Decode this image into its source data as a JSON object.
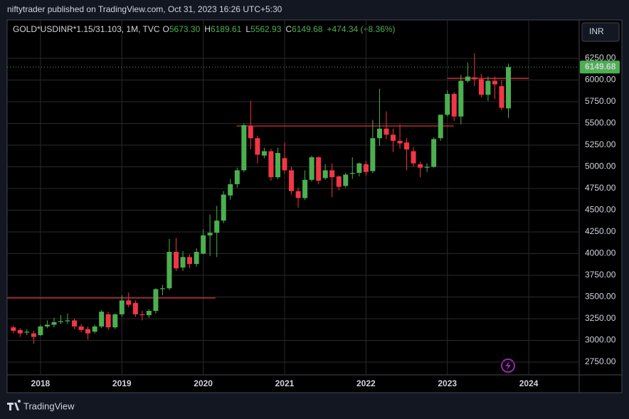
{
  "chart_data": {
    "type": "candlestick",
    "header": "niftytrader published on TradingView.com, Oct 31, 2023 16:26 UTC+5:30",
    "title": "GOLD*USDINR*1.15/31.103, 1M, TVC",
    "ohlc_labels": [
      {
        "label": "O",
        "value": "5673.30"
      },
      {
        "label": "H",
        "value": "6189.61"
      },
      {
        "label": "L",
        "value": "5562.93"
      },
      {
        "label": "C",
        "value": "6149.68"
      }
    ],
    "change_label": "+474.34 (+8.36%)",
    "currency": "INR",
    "brand": "TradingView",
    "up_color": "#4caf50",
    "down_color": "#f23645",
    "x": [
      2017.667,
      2017.75,
      2017.833,
      2017.917,
      2018,
      2018.083,
      2018.167,
      2018.25,
      2018.333,
      2018.417,
      2018.5,
      2018.583,
      2018.667,
      2018.75,
      2018.833,
      2018.917,
      2019,
      2019.083,
      2019.167,
      2019.25,
      2019.333,
      2019.417,
      2019.5,
      2019.583,
      2019.667,
      2019.75,
      2019.833,
      2019.917,
      2020,
      2020.083,
      2020.167,
      2020.25,
      2020.333,
      2020.417,
      2020.5,
      2020.583,
      2020.667,
      2020.75,
      2020.833,
      2020.917,
      2021,
      2021.083,
      2021.167,
      2021.25,
      2021.333,
      2021.417,
      2021.5,
      2021.583,
      2021.667,
      2021.75,
      2021.833,
      2021.917,
      2022,
      2022.083,
      2022.167,
      2022.25,
      2022.333,
      2022.417,
      2022.5,
      2022.583,
      2022.667,
      2022.75,
      2022.833,
      2022.917,
      2023,
      2023.083,
      2023.167,
      2023.25,
      2023.333,
      2023.417,
      2023.5,
      2023.583,
      2023.667,
      2023.75
    ],
    "open": [
      3150,
      3120,
      3090,
      3080,
      3060,
      3160,
      3180,
      3210,
      3220,
      3230,
      3160,
      3130,
      3100,
      3160,
      3300,
      3150,
      3300,
      3460,
      3430,
      3300,
      3290,
      3340,
      3590,
      3600,
      4020,
      3840,
      3960,
      3880,
      4000,
      4210,
      4240,
      4380,
      4670,
      4800,
      4960,
      5470,
      5330,
      5130,
      5180,
      4880,
      5100,
      4960,
      4720,
      4640,
      4850,
      5110,
      4870,
      4960,
      4890,
      4780,
      4920,
      4930,
      5030,
      4950,
      5330,
      5440,
      5370,
      5300,
      5280,
      5180,
      5030,
      4990,
      5000,
      5330,
      5600,
      5840,
      5580,
      5990,
      6030,
      6010,
      5830,
      5990,
      5930,
      5673.3
    ],
    "high": [
      3170,
      3140,
      3130,
      3110,
      3180,
      3230,
      3260,
      3290,
      3310,
      3250,
      3190,
      3160,
      3180,
      3350,
      3330,
      3310,
      3520,
      3550,
      3460,
      3340,
      3360,
      3600,
      3640,
      4170,
      4180,
      4030,
      3990,
      4060,
      4280,
      4450,
      4550,
      4720,
      4860,
      4990,
      5500,
      5760,
      5360,
      5220,
      5210,
      5220,
      5280,
      5000,
      4760,
      4960,
      5130,
      5120,
      5030,
      5040,
      4900,
      4930,
      5110,
      5050,
      5070,
      5540,
      5900,
      5640,
      5440,
      5490,
      5330,
      5230,
      5060,
      5040,
      5340,
      5600,
      5880,
      5860,
      6060,
      6200,
      6310,
      6070,
      6040,
      6040,
      6000,
      6189.61
    ],
    "low": [
      3080,
      3040,
      3060,
      2960,
      3050,
      3140,
      3150,
      3190,
      3190,
      3130,
      3090,
      3010,
      3080,
      3140,
      3120,
      3130,
      3270,
      3380,
      3270,
      3230,
      3260,
      3310,
      3520,
      3580,
      3800,
      3800,
      3830,
      3850,
      3990,
      3970,
      3960,
      4350,
      4620,
      4760,
      4940,
      5200,
      5040,
      5100,
      4840,
      4860,
      4920,
      4680,
      4530,
      4620,
      4830,
      4800,
      4850,
      4650,
      4730,
      4760,
      4860,
      4890,
      4900,
      4930,
      5240,
      5320,
      5170,
      5210,
      4960,
      5000,
      4880,
      4940,
      4990,
      5300,
      5580,
      5530,
      5490,
      5970,
      5930,
      5800,
      5760,
      5780,
      5650,
      5562.93
    ],
    "close": [
      3110,
      3080,
      3100,
      3040,
      3160,
      3180,
      3210,
      3220,
      3230,
      3160,
      3120,
      3080,
      3160,
      3330,
      3150,
      3300,
      3460,
      3410,
      3300,
      3290,
      3340,
      3590,
      3600,
      4020,
      3830,
      3960,
      3880,
      4020,
      4210,
      4240,
      4380,
      4680,
      4800,
      4960,
      5480,
      5330,
      5140,
      5180,
      4880,
      5160,
      4960,
      4720,
      4640,
      4850,
      5110,
      4840,
      4960,
      4880,
      4770,
      4910,
      4930,
      5040,
      4940,
      5330,
      5440,
      5370,
      5300,
      5270,
      5200,
      5040,
      4990,
      5000,
      5320,
      5600,
      5840,
      5580,
      5990,
      6040,
      6010,
      5830,
      5990,
      5950,
      5680,
      6149.68
    ],
    "xlim": [
      2017.59,
      2024.62
    ],
    "ylim": [
      2602,
      6693
    ],
    "xticks": [
      2018,
      2019,
      2020,
      2021,
      2022,
      2023,
      2024
    ],
    "yticks": [
      {
        "value": 2750,
        "label": "2750.00"
      },
      {
        "value": 3000,
        "label": "3000.00"
      },
      {
        "value": 3250,
        "label": "3250.00"
      },
      {
        "value": 3500,
        "label": "3500.00"
      },
      {
        "value": 3750,
        "label": "3750.00"
      },
      {
        "value": 4000,
        "label": "4000.00"
      },
      {
        "value": 4250,
        "label": "4250.00"
      },
      {
        "value": 4500,
        "label": "4500.00"
      },
      {
        "value": 4750,
        "label": "4750.00"
      },
      {
        "value": 5000,
        "label": "5000.00"
      },
      {
        "value": 5250,
        "label": "5250.00"
      },
      {
        "value": 5500,
        "label": "5500.00"
      },
      {
        "value": 5750,
        "label": "5750.00"
      },
      {
        "value": 6000,
        "label": "6000.00"
      },
      {
        "value": 6250,
        "label": "6250.00"
      }
    ],
    "grid": true,
    "last_price": {
      "value": 6149.68,
      "label": "6149.68"
    },
    "levels": [
      {
        "value": 3488,
        "x": [
          2017.59,
          2020.15
        ]
      },
      {
        "value": 5471,
        "x": [
          2020.41,
          2023.08
        ]
      },
      {
        "value": 6020,
        "x": [
          2023.0,
          2024.0
        ]
      }
    ]
  }
}
